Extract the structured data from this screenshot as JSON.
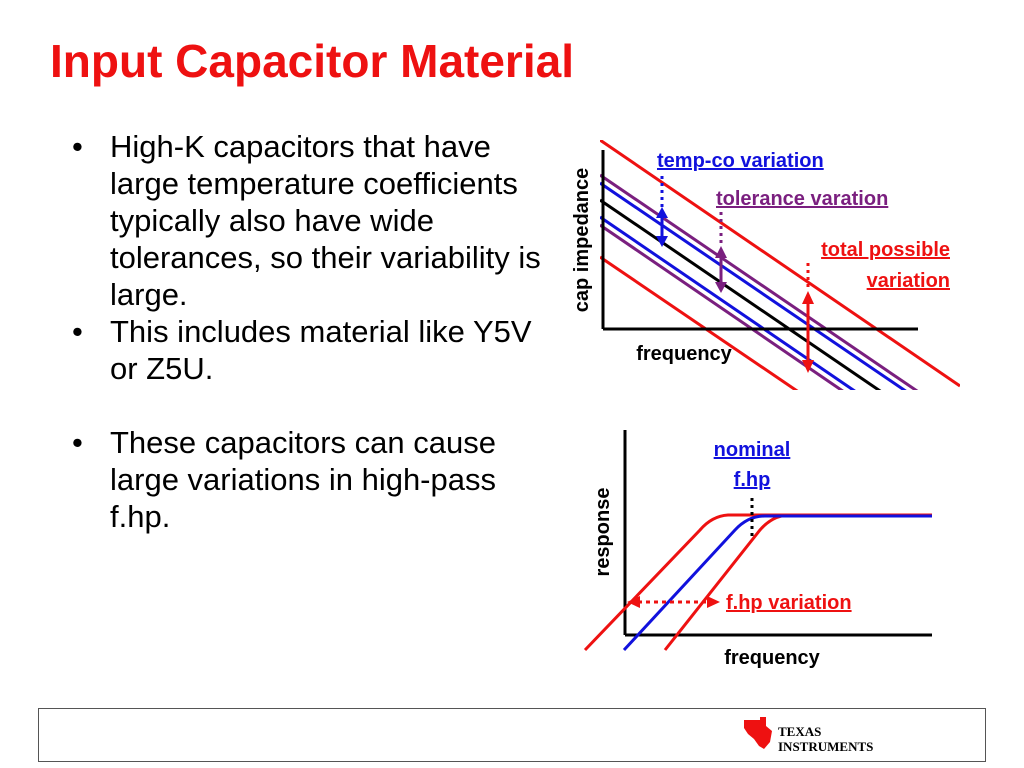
{
  "slide": {
    "title": "Input Capacitor Material",
    "bullets": [
      "High-K capacitors that have large temperature coefficients typically also have wide tolerances, so their variability is large.",
      "This includes material like Y5V or Z5U.",
      "These capacitors can cause large variations in high-pass f.hp."
    ]
  },
  "diagram_impedance": {
    "ylabel": "cap impedance",
    "xlabel": "frequency",
    "labels": {
      "tempco": "temp-co variation",
      "tolerance": "tolerance varation",
      "total_line1": "total possible",
      "total_line2": "variation"
    }
  },
  "diagram_response": {
    "ylabel": "response",
    "xlabel": "frequency",
    "labels": {
      "nominal_line1": "nominal",
      "nominal_line2": "f.hp",
      "fhp_variation": "f.hp variation"
    }
  },
  "footer": {
    "logo_line1": "TEXAS",
    "logo_line2": "INSTRUMENTS"
  },
  "colors": {
    "title": "#ee1111",
    "red": "#ee1111",
    "blue": "#1111dd",
    "purple": "#7a1f7f",
    "black": "#000000"
  }
}
